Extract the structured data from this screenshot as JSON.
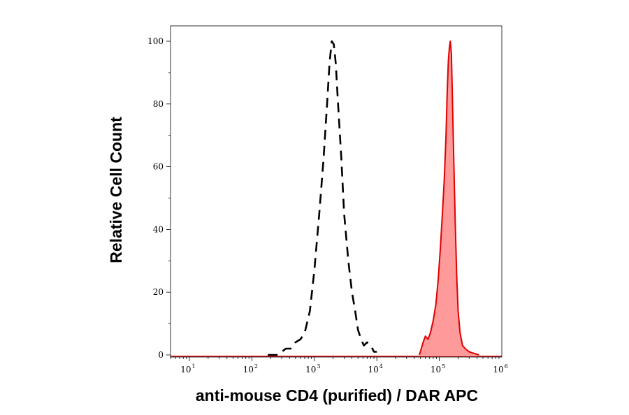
{
  "chart_data": {
    "type": "area",
    "title": "",
    "xlabel": "anti-mouse CD4 (purified) / DAR APC",
    "ylabel": "Relative Cell Count",
    "x_scale": "log",
    "xlim": [
      5,
      1000000
    ],
    "ylim": [
      0,
      103
    ],
    "x_ticks": [
      {
        "value": 10,
        "base": "10",
        "exp": "1"
      },
      {
        "value": 100,
        "base": "10",
        "exp": "2"
      },
      {
        "value": 1000,
        "base": "10",
        "exp": "3"
      },
      {
        "value": 10000,
        "base": "10",
        "exp": "4"
      },
      {
        "value": 100000,
        "base": "10",
        "exp": "5"
      },
      {
        "value": 1000000,
        "base": "10",
        "exp": "6"
      }
    ],
    "y_ticks": [
      {
        "value": 0,
        "label": "0"
      },
      {
        "value": 20,
        "label": "20"
      },
      {
        "value": 40,
        "label": "40"
      },
      {
        "value": 60,
        "label": "60"
      },
      {
        "value": 80,
        "label": "80"
      },
      {
        "value": 100,
        "label": "100"
      }
    ],
    "grid": false,
    "legend": "none",
    "series": [
      {
        "style": "dashed-line",
        "color": "#000000",
        "x": [
          180,
          260,
          350,
          420,
          500,
          600,
          700,
          850,
          1000,
          1200,
          1400,
          1600,
          1750,
          1900,
          2050,
          2200,
          2400,
          2700,
          3000,
          3500,
          4000,
          4500,
          5000,
          5600,
          6200,
          7000,
          8000,
          9000,
          10000
        ],
        "y": [
          0,
          0,
          2,
          2,
          4,
          5,
          7,
          14,
          27,
          45,
          62,
          80,
          93,
          100,
          99,
          93,
          80,
          63,
          45,
          30,
          20,
          14,
          8,
          5,
          3,
          4,
          3,
          1,
          1
        ]
      },
      {
        "style": "filled-area",
        "color": "#e00000",
        "fill": "#ff9a9a",
        "x": [
          48000,
          55000,
          60000,
          66000,
          72000,
          80000,
          88000,
          96000,
          104000,
          112000,
          120000,
          128000,
          134000,
          140000,
          145000,
          150000,
          156000,
          162000,
          170000,
          180000,
          190000,
          200000,
          215000,
          235000,
          260000,
          300000,
          360000,
          430000
        ],
        "y": [
          0,
          4,
          6,
          5,
          7,
          11,
          16,
          24,
          34,
          45,
          56,
          70,
          84,
          94,
          98,
          100,
          96,
          82,
          63,
          42,
          25,
          14,
          7,
          3,
          2,
          1,
          0.5,
          0
        ]
      }
    ]
  }
}
